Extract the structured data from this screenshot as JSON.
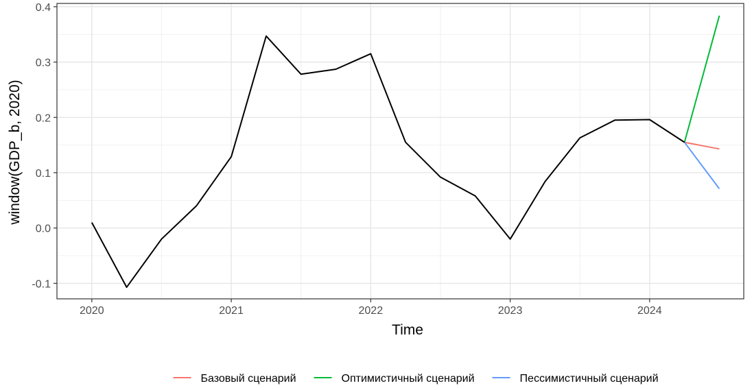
{
  "chart_data": {
    "type": "line",
    "xlabel": "Time",
    "ylabel": "window(GDP_b, 2020)",
    "xlim": [
      2019.75,
      2024.675
    ],
    "ylim": [
      -0.128,
      0.406
    ],
    "x_ticks": [
      2020,
      2021,
      2022,
      2023,
      2024
    ],
    "x_tick_labels": [
      "2020",
      "2021",
      "2022",
      "2023",
      "2024"
    ],
    "y_ticks": [
      -0.1,
      0.0,
      0.1,
      0.2,
      0.3,
      0.4
    ],
    "y_tick_labels": [
      "-0.1",
      "0.0",
      "0.1",
      "0.2",
      "0.3",
      "0.4"
    ],
    "grid": true,
    "legend_position": "bottom",
    "main_series": {
      "color": "#000000",
      "x": [
        2020,
        2020.25,
        2020.5,
        2020.75,
        2021,
        2021.25,
        2021.5,
        2021.75,
        2022,
        2022.25,
        2022.5,
        2022.75,
        2023,
        2023.25,
        2023.5,
        2023.75,
        2024,
        2024.25
      ],
      "y": [
        0.01,
        -0.107,
        -0.02,
        0.04,
        0.129,
        0.347,
        0.278,
        0.287,
        0.315,
        0.155,
        0.092,
        0.058,
        -0.02,
        0.084,
        0.163,
        0.195,
        0.196,
        0.155
      ]
    },
    "series": [
      {
        "name": "Базовый сценарий",
        "color": "#F8766D",
        "x": [
          2024.25,
          2024.5
        ],
        "y": [
          0.155,
          0.143
        ]
      },
      {
        "name": "Оптимистичный сценарий",
        "color": "#00BA38",
        "x": [
          2024.25,
          2024.5
        ],
        "y": [
          0.155,
          0.384
        ]
      },
      {
        "name": "Пессимистичный сценарий",
        "color": "#619CFF",
        "x": [
          2024.25,
          2024.5
        ],
        "y": [
          0.155,
          0.071
        ]
      }
    ]
  }
}
